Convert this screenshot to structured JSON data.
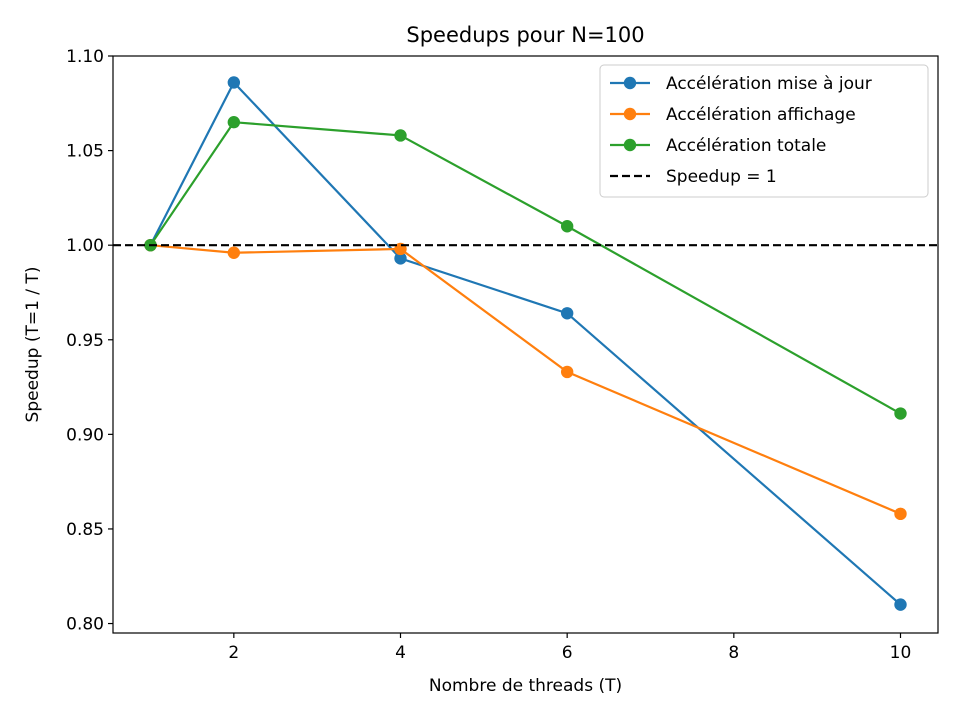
{
  "chart_data": {
    "type": "line",
    "title": "Speedups pour N=100",
    "xlabel": "Nombre de threads (T)",
    "ylabel": "Speedup (T=1 / T)",
    "x": [
      1,
      2,
      4,
      6,
      10
    ],
    "xlim": [
      0.55,
      10.45
    ],
    "ylim": [
      0.795,
      1.1
    ],
    "xticks": [
      2,
      4,
      6,
      8,
      10
    ],
    "xtick_labels": [
      "2",
      "4",
      "6",
      "8",
      "10"
    ],
    "yticks": [
      0.8,
      0.85,
      0.9,
      0.95,
      1.0,
      1.05,
      1.1
    ],
    "ytick_labels": [
      "0.80",
      "0.85",
      "0.90",
      "0.95",
      "1.00",
      "1.05",
      "1.10"
    ],
    "grid": false,
    "legend_position": "top-right",
    "series": [
      {
        "name": "Accélération mise à jour",
        "color": "#1f77b4",
        "marker": "circle",
        "values": [
          1.0,
          1.086,
          0.993,
          0.964,
          0.81
        ]
      },
      {
        "name": "Accélération affichage",
        "color": "#ff7f0e",
        "marker": "circle",
        "values": [
          1.0,
          0.996,
          0.998,
          0.933,
          0.858
        ]
      },
      {
        "name": "Accélération totale",
        "color": "#2ca02c",
        "marker": "circle",
        "values": [
          1.0,
          1.065,
          1.058,
          1.01,
          0.911
        ]
      }
    ],
    "reference_line": {
      "name": "Speedup = 1",
      "y": 1.0,
      "color": "#000000",
      "style": "dashed"
    }
  }
}
